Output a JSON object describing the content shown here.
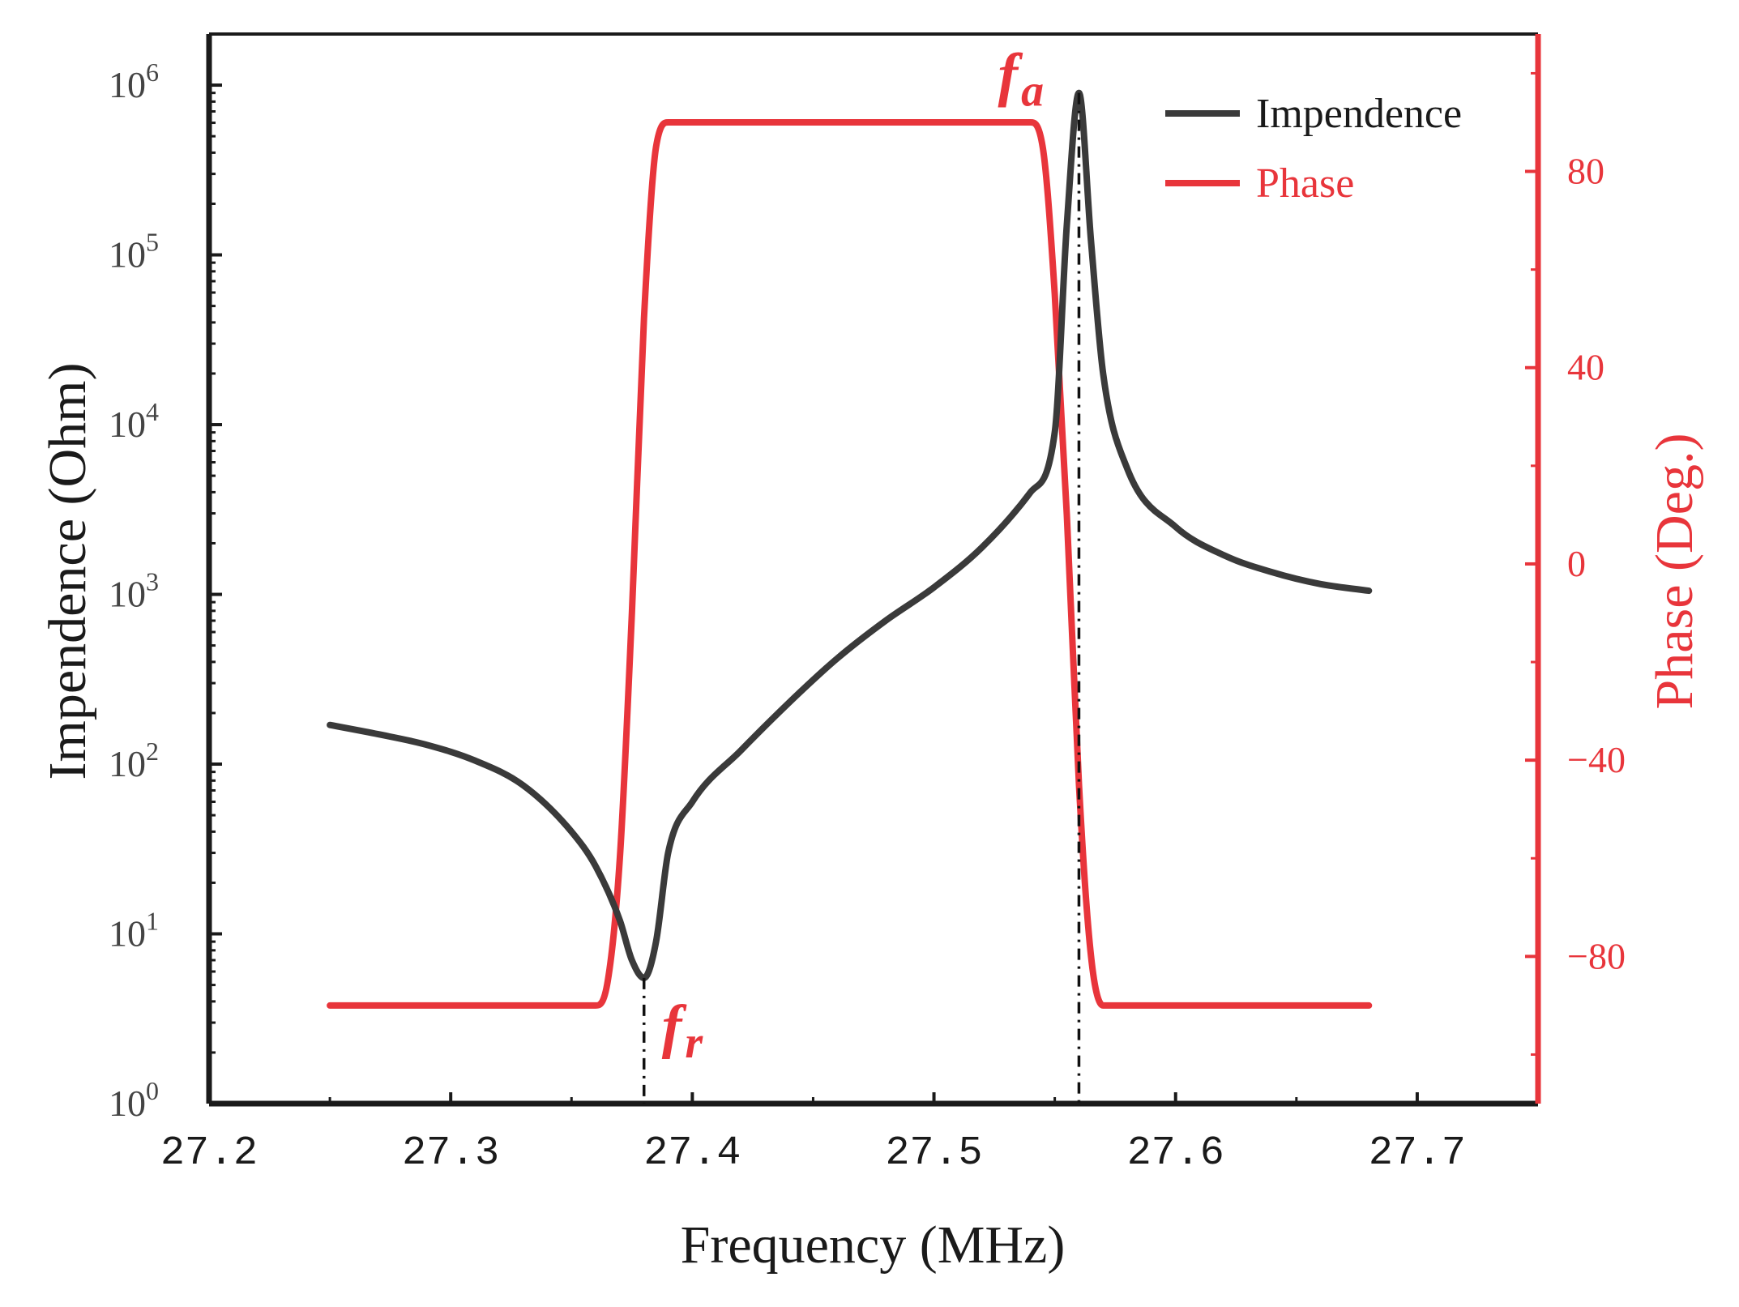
{
  "chart_data": {
    "type": "line",
    "xlabel": "Frequency (MHz)",
    "ylabel_left": "Impendence (Ohm)",
    "ylabel_right": "Phase (Deg.)",
    "xlim": [
      27.2,
      27.75
    ],
    "x_ticks": [
      27.2,
      27.3,
      27.4,
      27.5,
      27.6,
      27.7
    ],
    "x_tick_labels": [
      "27.2",
      "27.3",
      "27.4",
      "27.5",
      "27.6",
      "27.7"
    ],
    "ylim_left": [
      1,
      2000000
    ],
    "y_scale_left": "log",
    "y_ticks_left": [
      {
        "value": 1,
        "base": "10",
        "exp": "0"
      },
      {
        "value": 10,
        "base": "10",
        "exp": "1"
      },
      {
        "value": 100,
        "base": "10",
        "exp": "2"
      },
      {
        "value": 1000,
        "base": "10",
        "exp": "3"
      },
      {
        "value": 10000,
        "base": "10",
        "exp": "4"
      },
      {
        "value": 100000,
        "base": "10",
        "exp": "5"
      },
      {
        "value": 1000000,
        "base": "10",
        "exp": "6"
      }
    ],
    "ylim_right": [
      -110,
      108
    ],
    "y_ticks_right": [
      -80,
      -40,
      0,
      40,
      80
    ],
    "y_tick_labels_right": [
      "−80",
      "−40",
      "0",
      "40",
      "80"
    ],
    "grid": false,
    "legend_position": "top-right",
    "series": [
      {
        "name": "Impendence",
        "axis": "left",
        "color": "#3a3a3a",
        "x": [
          27.25,
          27.27,
          27.29,
          27.31,
          27.33,
          27.35,
          27.36,
          27.37,
          27.375,
          27.38,
          27.385,
          27.39,
          27.4,
          27.42,
          27.44,
          27.46,
          27.48,
          27.5,
          27.52,
          27.54,
          27.55,
          27.555,
          27.56,
          27.565,
          27.57,
          27.58,
          27.6,
          27.62,
          27.64,
          27.66,
          27.68
        ],
        "y": [
          170,
          150,
          130,
          105,
          75,
          40,
          25,
          12,
          7,
          5.5,
          9,
          30,
          60,
          120,
          230,
          420,
          700,
          1100,
          1900,
          4000,
          9000,
          150000,
          900000,
          120000,
          20000,
          5500,
          2500,
          1700,
          1350,
          1150,
          1050
        ]
      },
      {
        "name": "Phase",
        "axis": "right",
        "color": "#e8353b",
        "x": [
          27.25,
          27.36,
          27.365,
          27.37,
          27.375,
          27.38,
          27.385,
          27.39,
          27.54,
          27.545,
          27.55,
          27.555,
          27.56,
          27.565,
          27.57,
          27.68
        ],
        "y": [
          -90,
          -90,
          -85,
          -60,
          -10,
          50,
          85,
          90,
          90,
          85,
          55,
          10,
          -45,
          -80,
          -90,
          -90
        ]
      }
    ],
    "annotations": [
      {
        "main": "f",
        "sub": "a",
        "x": 27.56,
        "y_left": 1050000,
        "color": "#e8353b"
      },
      {
        "main": "f",
        "sub": "r",
        "x": 27.38,
        "y_left": 2.6,
        "color": "#e8353b"
      }
    ],
    "vlines": [
      {
        "x": 27.38,
        "from_y_left": 1,
        "to_y_left": 5.5
      },
      {
        "x": 27.56,
        "from_y_left": 1,
        "to_y_left": 900000
      }
    ]
  }
}
